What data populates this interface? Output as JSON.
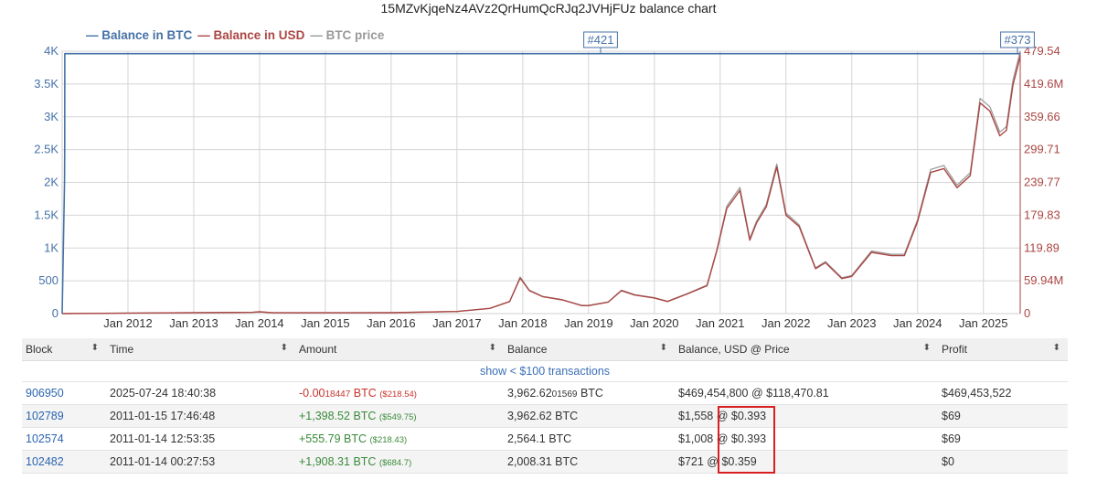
{
  "chart_data": {
    "type": "line",
    "title": "15MZvKjqeNz4AVz2QrHumQcRJq2JVHjFUz balance chart",
    "legend": {
      "placement": "top-left",
      "entries": [
        "Balance in BTC",
        "Balance in USD",
        "BTC price"
      ]
    },
    "x_ticks": [
      "Jan 2012",
      "Jan 2013",
      "Jan 2014",
      "Jan 2015",
      "Jan 2016",
      "Jan 2017",
      "Jan 2018",
      "Jan 2019",
      "Jan 2020",
      "Jan 2021",
      "Jan 2022",
      "Jan 2023",
      "Jan 2024",
      "Jan 2025"
    ],
    "x_range": [
      2011.0,
      2025.56
    ],
    "y_left_ticks": [
      "0",
      "500",
      "1K",
      "1.5K",
      "2K",
      "2.5K",
      "3K",
      "3.5K",
      "4K"
    ],
    "y_left_range": [
      0,
      4000
    ],
    "y_right_ticks": [
      "0",
      "59.94M",
      "119.89",
      "179.83",
      "239.77",
      "299.71",
      "359.66",
      "419.6M",
      "479.54"
    ],
    "y_right_range": [
      0,
      479.54
    ],
    "grid": true,
    "flags": [
      "#421",
      "#373"
    ],
    "series": [
      {
        "name": "Balance in BTC",
        "color": "#4572a7",
        "x": [
          2011.0,
          2011.036,
          2011.039,
          2011.04,
          2025.56
        ],
        "y": [
          0,
          2008.31,
          2564.1,
          3962.62,
          3962.62
        ]
      },
      {
        "name": "Balance in USD",
        "unit": "M USD",
        "color": "#aa4643",
        "x": [
          2011.0,
          2013.9,
          2014.0,
          2014.2,
          2016.0,
          2017.0,
          2017.5,
          2017.8,
          2017.96,
          2018.1,
          2018.3,
          2018.6,
          2018.9,
          2019.0,
          2019.3,
          2019.5,
          2019.7,
          2020.0,
          2020.2,
          2020.5,
          2020.8,
          2020.95,
          2021.1,
          2021.3,
          2021.45,
          2021.55,
          2021.7,
          2021.86,
          2022.0,
          2022.2,
          2022.45,
          2022.6,
          2022.85,
          2023.0,
          2023.3,
          2023.6,
          2023.8,
          2024.0,
          2024.2,
          2024.4,
          2024.6,
          2024.8,
          2024.95,
          2025.1,
          2025.25,
          2025.35,
          2025.45,
          2025.56
        ],
        "y": [
          0,
          2.4,
          3.4,
          1.5,
          1.7,
          3.9,
          9.5,
          22,
          65,
          42,
          31,
          25,
          14.5,
          14.5,
          21,
          42,
          34,
          28.5,
          22,
          36,
          51,
          115,
          192,
          225,
          134,
          165,
          195,
          268,
          180,
          159,
          82,
          93,
          64,
          68,
          112,
          106,
          106,
          168,
          258,
          265,
          230,
          252,
          385,
          370,
          325,
          335,
          418,
          470
        ]
      },
      {
        "name": "BTC price",
        "unit": "thousand USD",
        "color": "#999999",
        "x": [
          2011.0,
          2013.9,
          2014.0,
          2014.2,
          2016.0,
          2017.0,
          2017.5,
          2017.8,
          2017.96,
          2018.1,
          2018.3,
          2018.6,
          2018.9,
          2019.0,
          2019.3,
          2019.5,
          2019.7,
          2020.0,
          2020.2,
          2020.5,
          2020.8,
          2020.95,
          2021.1,
          2021.3,
          2021.45,
          2021.55,
          2021.7,
          2021.86,
          2022.0,
          2022.2,
          2022.45,
          2022.6,
          2022.85,
          2023.0,
          2023.3,
          2023.6,
          2023.8,
          2024.0,
          2024.2,
          2024.4,
          2024.6,
          2024.8,
          2024.95,
          2025.1,
          2025.25,
          2025.35,
          2025.45,
          2025.56
        ],
        "y": [
          0,
          0.6,
          0.8,
          0.4,
          0.4,
          1.0,
          2.4,
          5.5,
          16.5,
          10.6,
          7.8,
          6.3,
          3.7,
          3.7,
          5.3,
          10.6,
          8.6,
          7.2,
          5.6,
          9.1,
          12.9,
          29,
          48.5,
          57,
          34,
          41.6,
          49.2,
          67.6,
          45.4,
          40.1,
          20.7,
          23.5,
          16.2,
          17.2,
          28.3,
          26.8,
          26.8,
          42.4,
          65.1,
          66.9,
          58.0,
          63.6,
          97.2,
          93.4,
          82.0,
          84.5,
          105.5,
          118.5
        ]
      }
    ]
  },
  "table": {
    "headers": [
      "Block",
      "Time",
      "Amount",
      "Balance",
      "Balance, USD @ Price",
      "Profit"
    ],
    "show_link": "show < $100 transactions",
    "rows": [
      {
        "block": "906950",
        "time": "2025-07-24 18:40:38",
        "amount_main": "-0.00",
        "amount_small": "18447",
        "amount_unit": " BTC",
        "amount_usd": "($218.54)",
        "amount_sign": "neg",
        "balance_main": "3,962.62",
        "balance_small": "01569",
        "balance_unit": " BTC",
        "balance_usd_value": "$469,454,800",
        "balance_usd_sep": " @ ",
        "balance_usd_price": "$118,470.81",
        "profit": "$469,453,522"
      },
      {
        "block": "102789",
        "time": "2011-01-15 17:46:48",
        "amount_main": "+1,398.52",
        "amount_small": "",
        "amount_unit": " BTC",
        "amount_usd": "($549.75)",
        "amount_sign": "pos",
        "balance_main": "3,962.62",
        "balance_small": "",
        "balance_unit": " BTC",
        "balance_usd_value": "$1,558",
        "balance_usd_sep": " @ ",
        "balance_usd_price": "$0.393",
        "profit": "$69"
      },
      {
        "block": "102574",
        "time": "2011-01-14 12:53:35",
        "amount_main": "+555.79",
        "amount_small": "",
        "amount_unit": " BTC",
        "amount_usd": "($218.43)",
        "amount_sign": "pos",
        "balance_main": "2,564.1",
        "balance_small": "",
        "balance_unit": " BTC",
        "balance_usd_value": "$1,008",
        "balance_usd_sep": " @ ",
        "balance_usd_price": "$0.393",
        "profit": "$69"
      },
      {
        "block": "102482",
        "time": "2011-01-14 00:27:53",
        "amount_main": "+1,908.31",
        "amount_small": "",
        "amount_unit": " BTC",
        "amount_usd": "($684.7)",
        "amount_sign": "pos",
        "balance_main": "2,008.31",
        "balance_small": "",
        "balance_unit": " BTC",
        "balance_usd_value": "$721",
        "balance_usd_sep": " @ ",
        "balance_usd_price": "$0.359",
        "profit": "$0"
      }
    ]
  }
}
